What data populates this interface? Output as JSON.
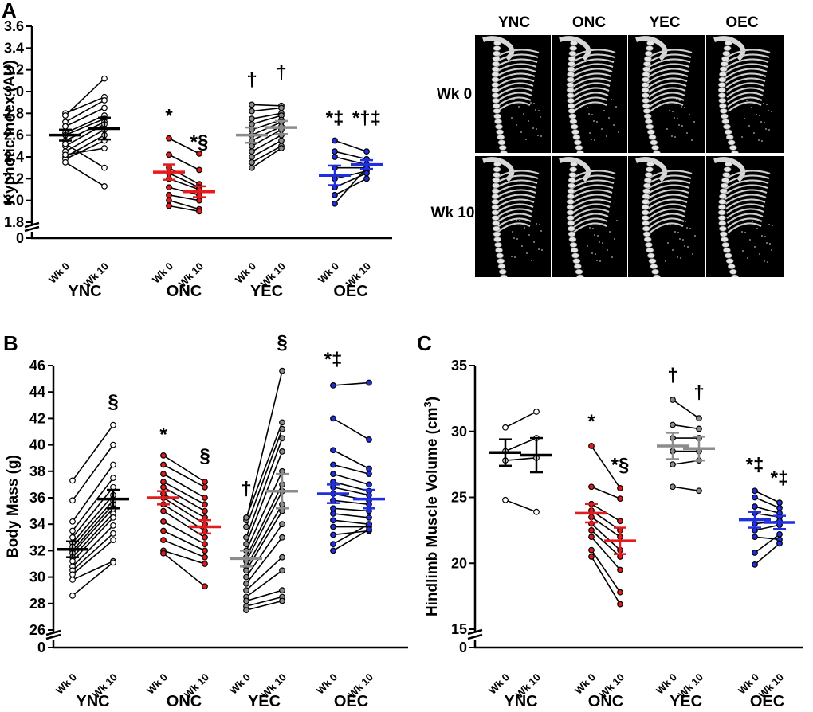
{
  "panels": {
    "A": "A",
    "B": "B",
    "C": "C"
  },
  "timepoints": [
    "Wk 0",
    "Wk 10"
  ],
  "groups": [
    "YNC",
    "ONC",
    "YEC",
    "OEC"
  ],
  "group_colors": {
    "YNC": "#000000",
    "ONC": "#e41a1c",
    "YEC": "#8c8c8c",
    "OEC": "#1f2fe0"
  },
  "ct_images": {
    "columns": [
      "YNC",
      "ONC",
      "YEC",
      "OEC"
    ],
    "rows": [
      "Wk 0",
      "Wk 10"
    ]
  },
  "chart_data": [
    {
      "id": "A",
      "type": "scatter",
      "title": "",
      "xlabel": "",
      "ylabel": "Kyphotic Index (AU)",
      "ylim": [
        1.8,
        3.6
      ],
      "yticks": [
        "1.8",
        "2.0",
        "2.2",
        "2.4",
        "2.6",
        "2.8",
        "3.0",
        "3.2",
        "3.4",
        "3.6"
      ],
      "ytick_values": [
        1.8,
        2.0,
        2.2,
        2.4,
        2.6,
        2.8,
        3.0,
        3.2,
        3.4,
        3.6
      ],
      "axis_break": "0",
      "series": [
        {
          "name": "YNC",
          "mean": [
            2.6,
            2.66
          ],
          "sem": [
            0.05,
            0.1
          ],
          "points": [
            [
              2.8,
              2.95
            ],
            [
              2.78,
              3.12
            ],
            [
              2.72,
              2.92
            ],
            [
              2.68,
              2.85
            ],
            [
              2.62,
              2.78
            ],
            [
              2.6,
              2.75
            ],
            [
              2.55,
              2.72
            ],
            [
              2.5,
              2.7
            ],
            [
              2.45,
              2.65
            ],
            [
              2.4,
              2.6
            ],
            [
              2.38,
              2.55
            ],
            [
              2.42,
              2.48
            ],
            [
              2.52,
              2.3
            ],
            [
              2.35,
              2.13
            ]
          ]
        },
        {
          "name": "ONC",
          "mean": [
            2.26,
            2.08
          ],
          "sem": [
            0.07,
            0.05
          ],
          "points": [
            [
              2.57,
              2.43
            ],
            [
              2.42,
              2.28
            ],
            [
              2.3,
              2.15
            ],
            [
              2.25,
              2.12
            ],
            [
              2.2,
              2.1
            ],
            [
              2.12,
              2.05
            ],
            [
              2.05,
              2.0
            ],
            [
              2.0,
              1.92
            ],
            [
              1.95,
              1.9
            ]
          ]
        },
        {
          "name": "YEC",
          "mean": [
            2.6,
            2.67
          ],
          "sem": [
            0.07,
            0.06
          ],
          "points": [
            [
              2.88,
              2.87
            ],
            [
              2.82,
              2.85
            ],
            [
              2.75,
              2.8
            ],
            [
              2.7,
              2.78
            ],
            [
              2.65,
              2.74
            ],
            [
              2.6,
              2.72
            ],
            [
              2.55,
              2.68
            ],
            [
              2.5,
              2.65
            ],
            [
              2.45,
              2.6
            ],
            [
              2.4,
              2.55
            ],
            [
              2.35,
              2.5
            ],
            [
              2.3,
              2.48
            ]
          ]
        },
        {
          "name": "OEC",
          "mean": [
            2.23,
            2.33
          ],
          "sem": [
            0.09,
            0.04
          ],
          "points": [
            [
              2.55,
              2.45
            ],
            [
              2.45,
              2.38
            ],
            [
              2.4,
              2.33
            ],
            [
              2.3,
              2.3
            ],
            [
              2.2,
              2.27
            ],
            [
              2.12,
              2.25
            ],
            [
              2.05,
              2.2
            ],
            [
              1.97,
              2.3
            ]
          ]
        }
      ],
      "annotations": [
        {
          "text": "*",
          "group": "ONC",
          "time": 0,
          "y": 2.72
        },
        {
          "text": "*§",
          "group": "ONC",
          "time": 1,
          "y": 2.48
        },
        {
          "text": "†",
          "group": "YEC",
          "time": 0,
          "y": 3.05
        },
        {
          "text": "†",
          "group": "YEC",
          "time": 1,
          "y": 3.12
        },
        {
          "text": "*‡",
          "group": "OEC",
          "time": 0,
          "y": 2.7
        },
        {
          "text": "*†‡",
          "group": "OEC",
          "time": 1,
          "y": 2.7
        }
      ]
    },
    {
      "id": "B",
      "type": "scatter",
      "title": "",
      "xlabel": "",
      "ylabel": "Body Mass (g)",
      "ylim": [
        26,
        46
      ],
      "yticks": [
        "26",
        "28",
        "30",
        "32",
        "34",
        "36",
        "38",
        "40",
        "42",
        "44",
        "46"
      ],
      "ytick_values": [
        26,
        28,
        30,
        32,
        34,
        36,
        38,
        40,
        42,
        44,
        46
      ],
      "axis_break": "0",
      "series": [
        {
          "name": "YNC",
          "mean": [
            32.1,
            35.9
          ],
          "sem": [
            0.6,
            0.7
          ],
          "points": [
            [
              37.3,
              41.5
            ],
            [
              35.8,
              40.0
            ],
            [
              34.2,
              38.5
            ],
            [
              33.5,
              37.5
            ],
            [
              33.0,
              36.8
            ],
            [
              32.6,
              36.2
            ],
            [
              32.3,
              35.8
            ],
            [
              32.0,
              35.5
            ],
            [
              31.8,
              35.2
            ],
            [
              31.5,
              34.8
            ],
            [
              31.2,
              34.5
            ],
            [
              30.8,
              33.9
            ],
            [
              30.5,
              33.3
            ],
            [
              30.2,
              32.8
            ],
            [
              29.8,
              31.2
            ],
            [
              28.6,
              31.1
            ]
          ]
        },
        {
          "name": "ONC",
          "mean": [
            36.0,
            33.8
          ],
          "sem": [
            0.5,
            0.5
          ],
          "points": [
            [
              39.2,
              37.2
            ],
            [
              38.5,
              36.8
            ],
            [
              37.8,
              36.0
            ],
            [
              37.2,
              35.5
            ],
            [
              36.8,
              35.0
            ],
            [
              36.3,
              34.5
            ],
            [
              36.0,
              34.0
            ],
            [
              35.5,
              33.5
            ],
            [
              35.0,
              33.0
            ],
            [
              34.2,
              32.5
            ],
            [
              33.5,
              32.0
            ],
            [
              32.8,
              31.5
            ],
            [
              32.0,
              31.0
            ],
            [
              31.8,
              29.3
            ]
          ]
        },
        {
          "name": "YEC",
          "mean": [
            31.4,
            36.5
          ],
          "sem": [
            0.6,
            1.3
          ],
          "points": [
            [
              34.3,
              45.6
            ],
            [
              34.5,
              41.7
            ],
            [
              33.8,
              41.2
            ],
            [
              33.0,
              40.5
            ],
            [
              32.5,
              39.5
            ],
            [
              32.0,
              38.0
            ],
            [
              31.5,
              37.0
            ],
            [
              31.2,
              36.5
            ],
            [
              30.8,
              35.5
            ],
            [
              30.5,
              35.0
            ],
            [
              30.0,
              34.0
            ],
            [
              29.5,
              33.0
            ],
            [
              29.0,
              31.5
            ],
            [
              28.5,
              30.5
            ],
            [
              28.2,
              29.0
            ],
            [
              27.8,
              28.5
            ],
            [
              27.5,
              28.2
            ]
          ]
        },
        {
          "name": "OEC",
          "mean": [
            36.3,
            35.9
          ],
          "sem": [
            0.7,
            0.7
          ],
          "points": [
            [
              44.5,
              44.7
            ],
            [
              42.0,
              40.4
            ],
            [
              39.6,
              38.2
            ],
            [
              38.5,
              37.8
            ],
            [
              37.8,
              37.0
            ],
            [
              37.2,
              36.5
            ],
            [
              36.8,
              36.2
            ],
            [
              36.3,
              35.8
            ],
            [
              35.8,
              35.5
            ],
            [
              35.2,
              35.0
            ],
            [
              34.8,
              34.5
            ],
            [
              34.3,
              34.0
            ],
            [
              33.8,
              33.8
            ],
            [
              33.2,
              33.5
            ],
            [
              32.5,
              34.0
            ],
            [
              32.0,
              33.6
            ]
          ]
        }
      ],
      "annotations": [
        {
          "text": "§",
          "group": "YNC",
          "time": 1,
          "y": 42.8
        },
        {
          "text": "*",
          "group": "ONC",
          "time": 0,
          "y": 40.3
        },
        {
          "text": "§",
          "group": "ONC",
          "time": 1,
          "y": 38.7
        },
        {
          "text": "†",
          "group": "YEC",
          "time": 0,
          "y": 36.2
        },
        {
          "text": "§",
          "group": "YEC",
          "time": 1,
          "y": 47.3
        },
        {
          "text": "*‡",
          "group": "OEC",
          "time": 0,
          "y": 46.0
        }
      ]
    },
    {
      "id": "C",
      "type": "scatter",
      "title": "",
      "xlabel": "",
      "ylabel": "Hindlimb Muscle Volume (cm",
      "ylabel_sup": "3",
      "ylabel_end": ")",
      "ylim": [
        15,
        35
      ],
      "yticks": [
        "15",
        "20",
        "25",
        "30",
        "35"
      ],
      "ytick_values": [
        15,
        20,
        25,
        30,
        35
      ],
      "axis_break": "0",
      "series": [
        {
          "name": "YNC",
          "mean": [
            28.4,
            28.2
          ],
          "sem": [
            1.0,
            1.3
          ],
          "points": [
            [
              30.3,
              31.5
            ],
            [
              28.5,
              29.5
            ],
            [
              27.8,
              28.0
            ],
            [
              24.8,
              23.9
            ]
          ]
        },
        {
          "name": "ONC",
          "mean": [
            23.8,
            21.7
          ],
          "sem": [
            0.7,
            1.0
          ],
          "points": [
            [
              28.9,
              25.7
            ],
            [
              25.8,
              24.9
            ],
            [
              24.5,
              23.2
            ],
            [
              24.0,
              22.5
            ],
            [
              23.5,
              22.0
            ],
            [
              23.0,
              21.0
            ],
            [
              22.5,
              20.5
            ],
            [
              22.0,
              19.5
            ],
            [
              21.0,
              17.8
            ],
            [
              20.5,
              16.9
            ]
          ]
        },
        {
          "name": "YEC",
          "mean": [
            28.9,
            28.7
          ],
          "sem": [
            1.0,
            0.9
          ],
          "points": [
            [
              32.4,
              31.0
            ],
            [
              30.5,
              30.2
            ],
            [
              29.5,
              29.5
            ],
            [
              28.5,
              28.5
            ],
            [
              27.5,
              27.8
            ],
            [
              25.8,
              25.5
            ]
          ]
        },
        {
          "name": "OEC",
          "mean": [
            23.3,
            23.1
          ],
          "sem": [
            0.6,
            0.5
          ],
          "points": [
            [
              25.5,
              24.6
            ],
            [
              25.0,
              24.2
            ],
            [
              24.3,
              23.8
            ],
            [
              23.8,
              23.5
            ],
            [
              23.0,
              23.2
            ],
            [
              22.5,
              22.9
            ],
            [
              22.0,
              21.8
            ],
            [
              20.8,
              22.2
            ],
            [
              19.9,
              21.5
            ]
          ]
        }
      ],
      "annotations": [
        {
          "text": "†",
          "group": "YEC",
          "time": 0,
          "y": 33.8
        },
        {
          "text": "†",
          "group": "YEC",
          "time": 1,
          "y": 32.5
        },
        {
          "text": "*",
          "group": "ONC",
          "time": 0,
          "y": 30.3
        },
        {
          "text": "*§",
          "group": "ONC",
          "time": 1,
          "y": 27.0
        },
        {
          "text": "*‡",
          "group": "OEC",
          "time": 0,
          "y": 27.0
        },
        {
          "text": "*‡",
          "group": "OEC",
          "time": 1,
          "y": 26.0
        }
      ]
    }
  ]
}
